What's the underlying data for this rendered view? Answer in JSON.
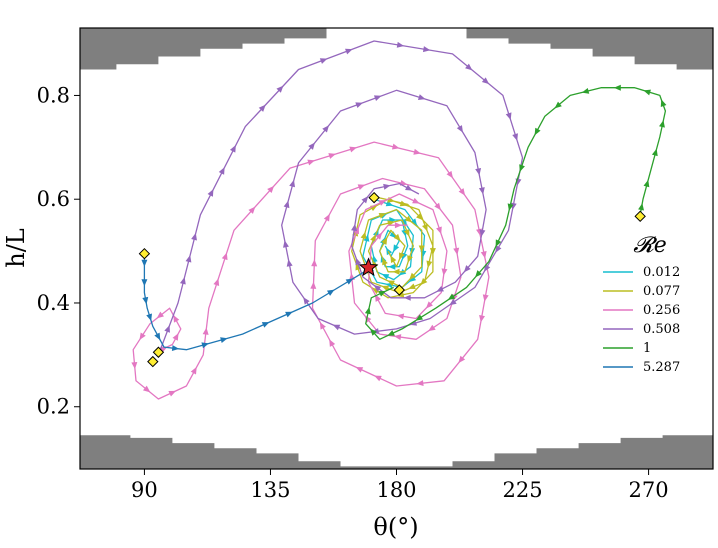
{
  "chart_data": {
    "type": "line",
    "title": "",
    "xlabel": "θ(°)",
    "ylabel": "h/L",
    "xlim": [
      67,
      293
    ],
    "ylim": [
      0.08,
      0.93
    ],
    "xticks": [
      90,
      135,
      180,
      225,
      270
    ],
    "yticks": [
      0.2,
      0.4,
      0.6,
      0.8
    ],
    "grid": false,
    "legend": {
      "title": "𝓡e",
      "placement": "right"
    },
    "colors": {
      "boundary": "#7f7f7f",
      "start_marker": "#ffee33",
      "equilibrium_marker": "#d62728"
    },
    "series": [
      {
        "name": "0.012",
        "color": "#17becf",
        "points": [
          [
            172,
            0.6
          ],
          [
            183,
            0.58
          ],
          [
            190,
            0.53
          ],
          [
            189,
            0.46
          ],
          [
            182,
            0.43
          ],
          [
            173,
            0.44
          ],
          [
            168,
            0.49
          ],
          [
            171,
            0.56
          ],
          [
            180,
            0.58
          ],
          [
            186,
            0.53
          ],
          [
            185,
            0.47
          ],
          [
            179,
            0.445
          ],
          [
            173,
            0.46
          ],
          [
            171,
            0.51
          ],
          [
            175,
            0.56
          ],
          [
            182,
            0.56
          ],
          [
            184,
            0.51
          ],
          [
            181,
            0.47
          ],
          [
            176,
            0.47
          ],
          [
            174,
            0.5
          ],
          [
            177,
            0.54
          ],
          [
            181,
            0.52
          ],
          [
            178,
            0.49
          ],
          [
            176,
            0.51
          ]
        ]
      },
      {
        "name": "0.077",
        "color": "#bcbd22",
        "points": [
          [
            172,
            0.605
          ],
          [
            184,
            0.59
          ],
          [
            193,
            0.54
          ],
          [
            193,
            0.46
          ],
          [
            186,
            0.42
          ],
          [
            177,
            0.41
          ],
          [
            168,
            0.44
          ],
          [
            164,
            0.5
          ],
          [
            167,
            0.57
          ],
          [
            177,
            0.6
          ],
          [
            188,
            0.58
          ],
          [
            193,
            0.51
          ],
          [
            190,
            0.44
          ],
          [
            181,
            0.42
          ],
          [
            171,
            0.44
          ],
          [
            167,
            0.5
          ],
          [
            170,
            0.56
          ],
          [
            180,
            0.58
          ],
          [
            189,
            0.54
          ],
          [
            189,
            0.47
          ],
          [
            182,
            0.43
          ],
          [
            174,
            0.45
          ],
          [
            170,
            0.5
          ],
          [
            174,
            0.55
          ],
          [
            182,
            0.56
          ],
          [
            186,
            0.51
          ],
          [
            183,
            0.46
          ],
          [
            177,
            0.46
          ],
          [
            174,
            0.5
          ],
          [
            178,
            0.54
          ],
          [
            183,
            0.51
          ],
          [
            180,
            0.47
          ],
          [
            177,
            0.5
          ]
        ]
      },
      {
        "name": "0.256",
        "color": "#e377c2",
        "points": [
          [
            94,
            0.305
          ],
          [
            100,
            0.32
          ],
          [
            103,
            0.35
          ],
          [
            99,
            0.39
          ],
          [
            92,
            0.36
          ],
          [
            86,
            0.31
          ],
          [
            87,
            0.25
          ],
          [
            95,
            0.215
          ],
          [
            105,
            0.24
          ],
          [
            111,
            0.3
          ],
          [
            113,
            0.39
          ],
          [
            122,
            0.54
          ],
          [
            142,
            0.66
          ],
          [
            172,
            0.71
          ],
          [
            195,
            0.68
          ],
          [
            208,
            0.58
          ],
          [
            213,
            0.45
          ],
          [
            209,
            0.33
          ],
          [
            197,
            0.25
          ],
          [
            180,
            0.24
          ],
          [
            160,
            0.29
          ],
          [
            150,
            0.39
          ],
          [
            151,
            0.52
          ],
          [
            160,
            0.61
          ],
          [
            175,
            0.64
          ],
          [
            190,
            0.62
          ],
          [
            200,
            0.55
          ],
          [
            203,
            0.45
          ],
          [
            198,
            0.37
          ],
          [
            187,
            0.33
          ],
          [
            174,
            0.34
          ],
          [
            165,
            0.4
          ],
          [
            163,
            0.5
          ],
          [
            169,
            0.58
          ],
          [
            181,
            0.61
          ],
          [
            193,
            0.58
          ],
          [
            198,
            0.5
          ],
          [
            196,
            0.42
          ],
          [
            187,
            0.37
          ],
          [
            176,
            0.38
          ],
          [
            170,
            0.44
          ],
          [
            171,
            0.51
          ],
          [
            177,
            0.55
          ],
          [
            184,
            0.55
          ]
        ]
      },
      {
        "name": "0.508",
        "color": "#9467bd",
        "points": [
          [
            95,
            0.3
          ],
          [
            102,
            0.4
          ],
          [
            110,
            0.57
          ],
          [
            126,
            0.74
          ],
          [
            145,
            0.85
          ],
          [
            172,
            0.905
          ],
          [
            200,
            0.88
          ],
          [
            218,
            0.8
          ],
          [
            225,
            0.68
          ],
          [
            220,
            0.54
          ],
          [
            208,
            0.43
          ],
          [
            192,
            0.37
          ],
          [
            180,
            0.35
          ],
          [
            165,
            0.34
          ],
          [
            152,
            0.37
          ],
          [
            143,
            0.44
          ],
          [
            139,
            0.55
          ],
          [
            145,
            0.67
          ],
          [
            160,
            0.77
          ],
          [
            180,
            0.81
          ],
          [
            198,
            0.78
          ],
          [
            208,
            0.69
          ],
          [
            212,
            0.58
          ],
          [
            209,
            0.49
          ],
          [
            201,
            0.44
          ],
          [
            190,
            0.41
          ],
          [
            178,
            0.41
          ],
          [
            168,
            0.45
          ],
          [
            164,
            0.51
          ],
          [
            166,
            0.58
          ],
          [
            172,
            0.62
          ],
          [
            181,
            0.63
          ],
          [
            188,
            0.61
          ]
        ]
      },
      {
        "name": "1",
        "color": "#2ca02c",
        "points": [
          [
            267,
            0.57
          ],
          [
            268,
            0.6
          ],
          [
            271,
            0.66
          ],
          [
            274,
            0.72
          ],
          [
            276,
            0.77
          ],
          [
            274,
            0.8
          ],
          [
            265,
            0.815
          ],
          [
            253,
            0.815
          ],
          [
            242,
            0.8
          ],
          [
            233,
            0.76
          ],
          [
            227,
            0.7
          ],
          [
            222,
            0.62
          ],
          [
            219,
            0.55
          ],
          [
            213,
            0.48
          ],
          [
            205,
            0.43
          ],
          [
            194,
            0.39
          ],
          [
            182,
            0.35
          ],
          [
            174,
            0.33
          ],
          [
            169,
            0.36
          ],
          [
            171,
            0.41
          ],
          [
            179,
            0.43
          ]
        ]
      },
      {
        "name": "5.287",
        "color": "#1f77b4",
        "points": [
          [
            90,
            0.495
          ],
          [
            90,
            0.46
          ],
          [
            90,
            0.42
          ],
          [
            91,
            0.39
          ],
          [
            93,
            0.355
          ],
          [
            97,
            0.315
          ],
          [
            105,
            0.31
          ],
          [
            125,
            0.34
          ],
          [
            150,
            0.4
          ],
          [
            170,
            0.465
          ]
        ]
      }
    ],
    "start_points": [
      [
        90,
        0.495
      ],
      [
        95,
        0.305
      ],
      [
        93,
        0.287
      ],
      [
        172,
        0.603
      ],
      [
        181,
        0.425
      ],
      [
        267,
        0.567
      ]
    ],
    "equilibrium_point": [
      170,
      0.468
    ],
    "boundary_top": [
      [
        67,
        0.93
      ],
      [
        67,
        0.85
      ],
      [
        80,
        0.85
      ],
      [
        80,
        0.86
      ],
      [
        95,
        0.86
      ],
      [
        95,
        0.875
      ],
      [
        110,
        0.875
      ],
      [
        110,
        0.89
      ],
      [
        125,
        0.89
      ],
      [
        125,
        0.9
      ],
      [
        140,
        0.9
      ],
      [
        140,
        0.91
      ],
      [
        155,
        0.91
      ],
      [
        155,
        0.93
      ],
      [
        205,
        0.93
      ],
      [
        205,
        0.91
      ],
      [
        220,
        0.91
      ],
      [
        220,
        0.9
      ],
      [
        235,
        0.9
      ],
      [
        235,
        0.89
      ],
      [
        250,
        0.89
      ],
      [
        250,
        0.875
      ],
      [
        265,
        0.875
      ],
      [
        265,
        0.86
      ],
      [
        280,
        0.86
      ],
      [
        280,
        0.85
      ],
      [
        293,
        0.85
      ],
      [
        293,
        0.93
      ]
    ],
    "boundary_bottom": [
      [
        67,
        0.08
      ],
      [
        67,
        0.145
      ],
      [
        85,
        0.145
      ],
      [
        85,
        0.14
      ],
      [
        100,
        0.14
      ],
      [
        100,
        0.13
      ],
      [
        115,
        0.13
      ],
      [
        115,
        0.12
      ],
      [
        130,
        0.12
      ],
      [
        130,
        0.11
      ],
      [
        145,
        0.11
      ],
      [
        145,
        0.095
      ],
      [
        160,
        0.095
      ],
      [
        160,
        0.085
      ],
      [
        200,
        0.085
      ],
      [
        200,
        0.095
      ],
      [
        215,
        0.095
      ],
      [
        215,
        0.11
      ],
      [
        230,
        0.11
      ],
      [
        230,
        0.12
      ],
      [
        245,
        0.12
      ],
      [
        245,
        0.13
      ],
      [
        260,
        0.13
      ],
      [
        260,
        0.14
      ],
      [
        275,
        0.14
      ],
      [
        275,
        0.145
      ],
      [
        293,
        0.145
      ],
      [
        293,
        0.08
      ]
    ]
  }
}
